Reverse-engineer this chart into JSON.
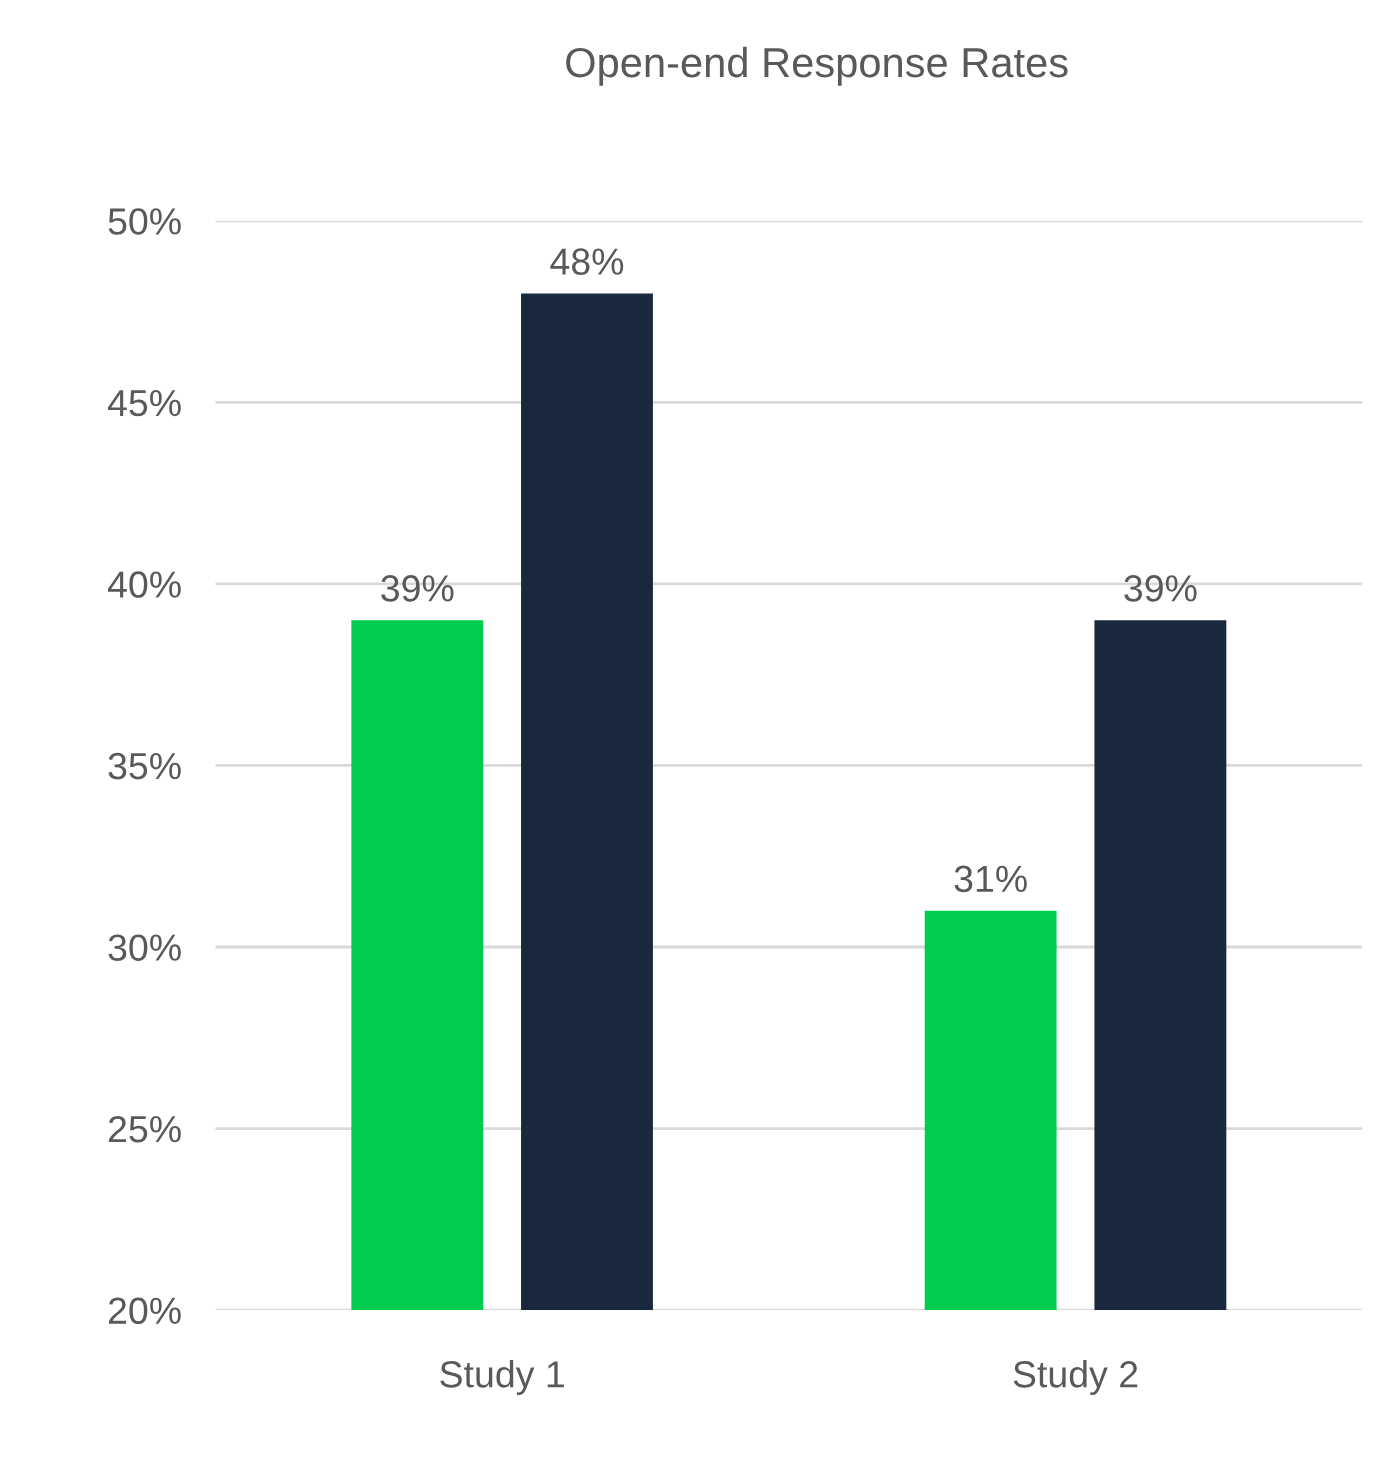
{
  "chart_data": {
    "type": "bar",
    "title": "Open-end Response Rates",
    "categories": [
      "Study 1",
      "Study 2"
    ],
    "series": [
      {
        "color": "#00cc50",
        "values": [
          39,
          31
        ],
        "value_labels": [
          "39%",
          "31%"
        ]
      },
      {
        "color": "#19283c",
        "values": [
          48,
          39
        ],
        "value_labels": [
          "48%",
          "39%"
        ]
      }
    ],
    "ylim": [
      20,
      50
    ],
    "yticks": [
      {
        "value": 20,
        "label": "20%"
      },
      {
        "value": 25,
        "label": "25%"
      },
      {
        "value": 30,
        "label": "30%"
      },
      {
        "value": 35,
        "label": "35%"
      },
      {
        "value": 40,
        "label": "40%"
      },
      {
        "value": 45,
        "label": "45%"
      },
      {
        "value": 50,
        "label": "50%"
      }
    ],
    "grid": "y",
    "legend": false
  }
}
